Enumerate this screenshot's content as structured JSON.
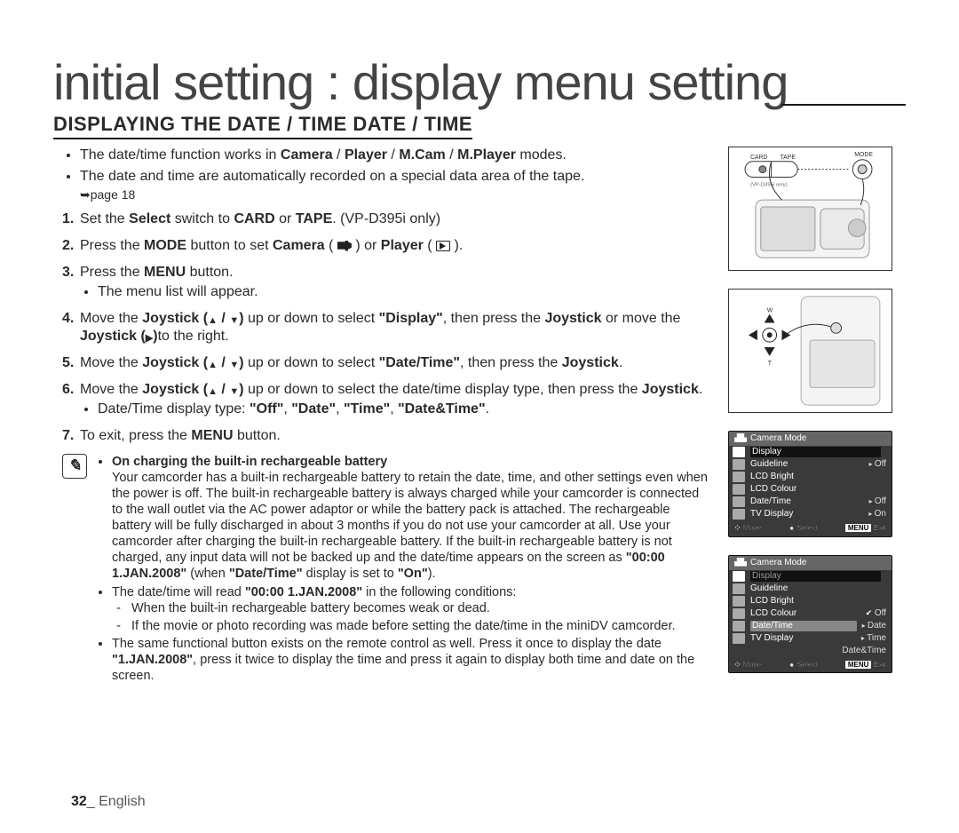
{
  "title": "initial setting : display menu setting",
  "section_heading": "DISPLAYING THE DATE / TIME DATE / TIME",
  "top_bullets": [
    "The date/time function works in <b>Camera</b> / <b>Player</b> / <b>M.Cam</b> / <b>M.Player</b> modes.",
    "The date and time are automatically recorded on a special data area of the tape."
  ],
  "page_ref": "➥page 18",
  "steps": [
    {
      "html": "Set the <b>Select</b> switch to <b>CARD</b> or <b>TAPE</b>. (VP-D395i only)"
    },
    {
      "html": "Press the <b>MODE</b> button to set <b>Camera</b> ( <span class='icon-inline cam' data-name='camera-mode-icon' data-interactable='false'></span> ) or <b>Player</b> ( <span class='icon-inline play' data-name='player-mode-icon' data-interactable='false'></span> )."
    },
    {
      "html": "Press the <b>MENU</b> button.",
      "sub": [
        "The menu list will appear."
      ]
    },
    {
      "html": "Move the <b>Joystick (<span class='tri'>▲</span> / <span class='tri'>▼</span>)</b> up or down to select <b>\"Display\"</b>, then press the <b>Joystick</b> or move the <b>Joystick (<span class='tri'>▶</span>)</b>to the right."
    },
    {
      "html": "Move the <b>Joystick (<span class='tri'>▲</span> / <span class='tri'>▼</span>)</b> up or down to select <b>\"Date/Time\"</b>, then press the <b>Joystick</b>."
    },
    {
      "html": "Move the <b>Joystick (<span class='tri'>▲</span> / <span class='tri'>▼</span>)</b> up or down to select the date/time display type, then press the <b>Joystick</b>.",
      "sub": [
        "Date/Time display type: <b>\"Off\"</b>, <b>\"Date\"</b>, <b>\"Time\"</b>, <b>\"Date&Time\"</b>."
      ]
    },
    {
      "html": "To exit, press the <b>MENU</b> button."
    }
  ],
  "note": {
    "items": [
      {
        "bold_lead": "On charging the built-in rechargeable battery",
        "text": "Your camcorder has a built-in rechargeable battery to retain the date, time, and other settings even when the power is off. The built-in rechargeable battery is always charged while your camcorder is connected to the wall outlet via the AC power adaptor or while the battery pack is attached. The rechargeable battery will be fully discharged in about 3 months if you do not use your camcorder at all. Use your camcorder after charging the built-in rechargeable battery. If the built-in rechargeable battery is not charged, any input data will not be backed up and the date/time appears on the screen as <b>\"00:00 1.JAN.2008\"</b> (when <b>\"Date/Time\"</b> display is set to <b>\"On\"</b>)."
      },
      {
        "text": "The date/time will read <b>\"00:00 1.JAN.2008\"</b> in the following conditions:",
        "sub": [
          "When the built-in rechargeable battery becomes weak or dead.",
          "If the movie or photo recording was made before setting the date/time in the miniDV camcorder."
        ]
      },
      {
        "text": "The same functional button exists on the remote control as well. Press it once to display the date <b>\"1.JAN.2008\"</b>, press it twice to display the time and press it again to display both time and date on the screen."
      }
    ]
  },
  "footer": {
    "page": "32",
    "sep": "_",
    "lang": "English"
  },
  "illus": {
    "top": {
      "card": "CARD",
      "tape": "TAPE",
      "mode": "MODE",
      "note": "(VP-D395i only)"
    },
    "mid": {
      "w": "W",
      "t": "T"
    }
  },
  "osd1": {
    "header": "Camera Mode",
    "rows": [
      {
        "label": "Display",
        "sel": true
      },
      {
        "label": "Guideline",
        "val": "Off"
      },
      {
        "label": "LCD Bright"
      },
      {
        "label": "LCD Colour"
      },
      {
        "label": "Date/Time",
        "val": "Off"
      },
      {
        "label": "TV Display",
        "val": "On"
      }
    ],
    "footer": {
      "move": "Move",
      "select": "Select",
      "menu": "MENU",
      "exit": "Exit"
    }
  },
  "osd2": {
    "header": "Camera Mode",
    "rows": [
      {
        "label": "Display",
        "sel": true,
        "dim": true
      },
      {
        "label": "Guideline"
      },
      {
        "label": "LCD Bright"
      },
      {
        "label": "LCD Colour",
        "val": "Off",
        "check": true
      },
      {
        "label": "Date/Time",
        "highlight": true,
        "val": "Date"
      },
      {
        "label": "TV Display",
        "val": "Time"
      }
    ],
    "extra_val": "Date&Time",
    "footer": {
      "move": "Move",
      "select": "Select",
      "menu": "MENU",
      "exit": "Exit"
    }
  },
  "colors": {
    "text": "#2a2a2a",
    "rule": "#1a1a1a",
    "osd_bg": "#3a3a3a",
    "osd_header": "#666666"
  }
}
